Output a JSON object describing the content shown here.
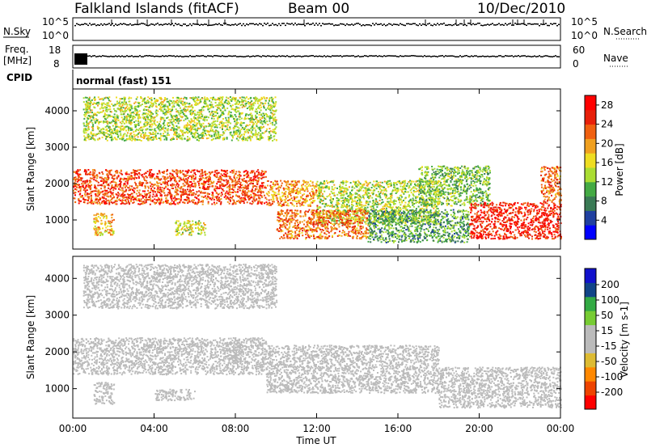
{
  "header": {
    "title": "Falkland Islands (fitACF)",
    "beam": "Beam 00",
    "date": "10/Dec/2010"
  },
  "panels": {
    "nsky": {
      "label": "N.Sky",
      "ticks": [
        "10^5",
        "10^0"
      ]
    },
    "nsearch": {
      "label": "N.Search",
      "ticks": [
        "10^5",
        "10^0"
      ]
    },
    "freq": {
      "label_line1": "Freq.",
      "label_line2": "[MHz]",
      "ticks": [
        "18",
        "8"
      ]
    },
    "nave": {
      "label": "Nave",
      "ticks": [
        "60",
        "0"
      ]
    },
    "cpid": {
      "label": "CPID",
      "value": "normal (fast) 151"
    }
  },
  "colors": {
    "power_scale": [
      "#0000ff",
      "#2040a0",
      "#3a7a55",
      "#44aa44",
      "#aadd33",
      "#eedd22",
      "#f0a020",
      "#f06010",
      "#e8200a",
      "#ff0000"
    ],
    "velocity_scale": [
      "#ff0000",
      "#ee4400",
      "#ff8800",
      "#ddbb33",
      "#bbbbbb",
      "#bbbbbb",
      "#77cc33",
      "#33aa44",
      "#114488",
      "#1111cc"
    ],
    "ground_scatter": "#bbbbbb"
  },
  "chart_data": [
    {
      "type": "heatmap",
      "title": "Power",
      "xlabel": "Time UT",
      "ylabel": "Slant Range [km]",
      "x_ticks": [
        "00:00",
        "04:00",
        "08:00",
        "12:00",
        "16:00",
        "20:00",
        "00:00"
      ],
      "xlim_hours": [
        0,
        24
      ],
      "y_ticks": [
        1000,
        2000,
        3000,
        4000
      ],
      "ylim": [
        200,
        4600
      ],
      "colorbar": {
        "label": "Power [dB]",
        "ticks": [
          4,
          8,
          12,
          16,
          20,
          24,
          28
        ],
        "range": [
          0,
          30
        ]
      },
      "regions": [
        {
          "t0": 0.0,
          "t1": 9.5,
          "r0": 1450,
          "r1": 2400,
          "level": 24
        },
        {
          "t0": 9.5,
          "t1": 12.0,
          "r0": 1400,
          "r1": 2100,
          "level": 20
        },
        {
          "t0": 12.0,
          "t1": 18.0,
          "r0": 900,
          "r1": 2100,
          "level": 14
        },
        {
          "t0": 10.0,
          "t1": 14.5,
          "r0": 500,
          "r1": 1300,
          "level": 22
        },
        {
          "t0": 14.5,
          "t1": 19.5,
          "r0": 400,
          "r1": 1300,
          "level": 10
        },
        {
          "t0": 17.0,
          "t1": 20.5,
          "r0": 1400,
          "r1": 2500,
          "level": 12
        },
        {
          "t0": 19.5,
          "t1": 24.0,
          "r0": 500,
          "r1": 1500,
          "level": 26
        },
        {
          "t0": 0.5,
          "t1": 10.0,
          "r0": 3200,
          "r1": 4400,
          "level": 14
        },
        {
          "t0": 1.0,
          "t1": 2.0,
          "r0": 600,
          "r1": 1200,
          "level": 18
        },
        {
          "t0": 5.0,
          "t1": 6.5,
          "r0": 600,
          "r1": 1000,
          "level": 16
        },
        {
          "t0": 23.0,
          "t1": 24.0,
          "r0": 1500,
          "r1": 2500,
          "level": 22
        }
      ]
    },
    {
      "type": "heatmap",
      "title": "Velocity",
      "xlabel": "Time UT",
      "ylabel": "Slant Range [km]",
      "x_ticks": [
        "00:00",
        "04:00",
        "08:00",
        "12:00",
        "16:00",
        "20:00",
        "00:00"
      ],
      "xlim_hours": [
        0,
        24
      ],
      "y_ticks": [
        1000,
        2000,
        3000,
        4000
      ],
      "ylim": [
        200,
        4600
      ],
      "colorbar": {
        "label": "Velocity [m s-1]",
        "ticks": [
          200,
          100,
          50,
          15,
          -15,
          -50,
          -100,
          -200
        ]
      },
      "regions": [
        {
          "t0": 0.0,
          "t1": 9.5,
          "r0": 1400,
          "r1": 2400,
          "level": 0
        },
        {
          "t0": 9.5,
          "t1": 18.0,
          "r0": 900,
          "r1": 2200,
          "level": 0
        },
        {
          "t0": 18.0,
          "t1": 24.0,
          "r0": 500,
          "r1": 1600,
          "level": 0
        },
        {
          "t0": 7.5,
          "t1": 8.5,
          "r0": 1700,
          "r1": 2300,
          "level": 40
        },
        {
          "t0": 0.5,
          "t1": 10.0,
          "r0": 3200,
          "r1": 4400,
          "level": -20
        },
        {
          "t0": 1.0,
          "t1": 2.0,
          "r0": 600,
          "r1": 1200,
          "level": 0
        },
        {
          "t0": 4.0,
          "t1": 6.0,
          "r0": 700,
          "r1": 1000,
          "level": 0
        }
      ]
    }
  ]
}
